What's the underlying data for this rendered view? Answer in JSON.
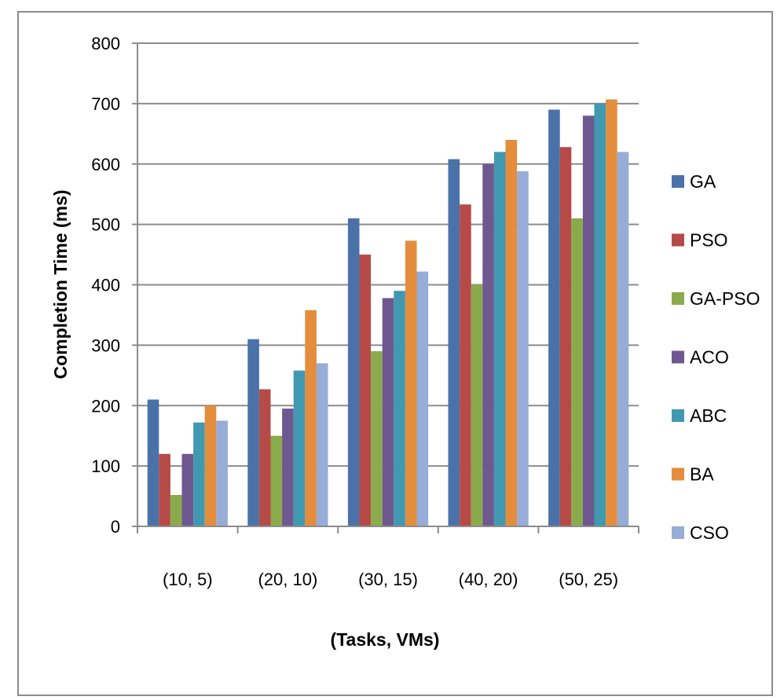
{
  "chart_data": {
    "type": "bar",
    "title": "",
    "xlabel": "(Tasks, VMs)",
    "ylabel": "Completion Time (ms)",
    "ylim": [
      0,
      800
    ],
    "yticks": [
      0,
      100,
      200,
      300,
      400,
      500,
      600,
      700,
      800
    ],
    "grid": true,
    "legend_position": "right",
    "categories": [
      "(10, 5)",
      "(20, 10)",
      "(30, 15)",
      "(40, 20)",
      "(50, 25)"
    ],
    "series": [
      {
        "name": "GA",
        "color": "#4a72a8",
        "values": [
          210,
          310,
          510,
          608,
          690
        ]
      },
      {
        "name": "PSO",
        "color": "#b64a47",
        "values": [
          120,
          227,
          450,
          533,
          628
        ]
      },
      {
        "name": "GA-PSO",
        "color": "#8aab4c",
        "values": [
          52,
          150,
          290,
          400,
          510
        ]
      },
      {
        "name": "ACO",
        "color": "#6e5890",
        "values": [
          120,
          195,
          378,
          600,
          680
        ]
      },
      {
        "name": "ABC",
        "color": "#4199b1",
        "values": [
          172,
          258,
          390,
          620,
          700
        ]
      },
      {
        "name": "BA",
        "color": "#e38d3d",
        "values": [
          200,
          358,
          473,
          640,
          707
        ]
      },
      {
        "name": "CSO",
        "color": "#97acd7",
        "values": [
          175,
          270,
          422,
          588,
          620
        ]
      }
    ]
  }
}
